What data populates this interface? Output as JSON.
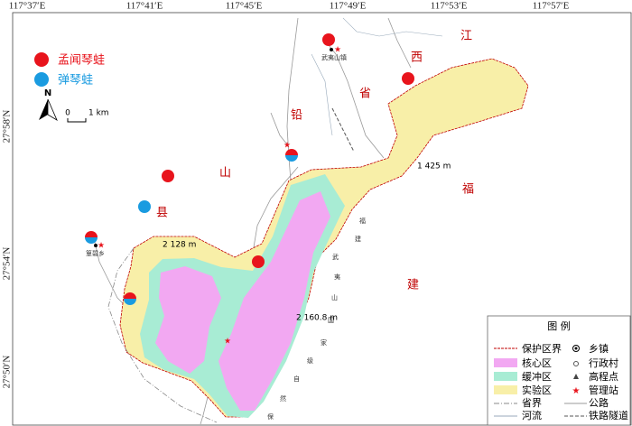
{
  "longitude_labels": [
    "117°37′E",
    "117°41′E",
    "117°45′E",
    "117°49′E",
    "117°53′E",
    "117°57′E"
  ],
  "latitude_labels": [
    "27°58′N",
    "27°54′N",
    "27°50′N"
  ],
  "species_legend": [
    "孟闻琴蛙",
    "弹琴蛙"
  ],
  "scale": {
    "north": "N",
    "zero": "0",
    "unit": "1 km"
  },
  "map_labels": {
    "county": [
      "铅",
      "山",
      "县"
    ],
    "province": [
      "江",
      "西",
      "省",
      "福",
      "建"
    ],
    "reserve": [
      "福",
      "建",
      "武",
      "夷",
      "山",
      "国",
      "家",
      "级",
      "自",
      "然",
      "保"
    ],
    "elevations": [
      "1 425 m",
      "2 128 m",
      "2 160.8 m"
    ],
    "towns": [
      "武夷山镇",
      "篁碧乡"
    ]
  },
  "legend": {
    "title": "图 例",
    "items": [
      "保护区界",
      "乡镇",
      "核心区",
      "行政村",
      "缓冲区",
      "高程点",
      "实验区",
      "管理站",
      "省界",
      "公路",
      "河流",
      "铁路隧道"
    ]
  }
}
